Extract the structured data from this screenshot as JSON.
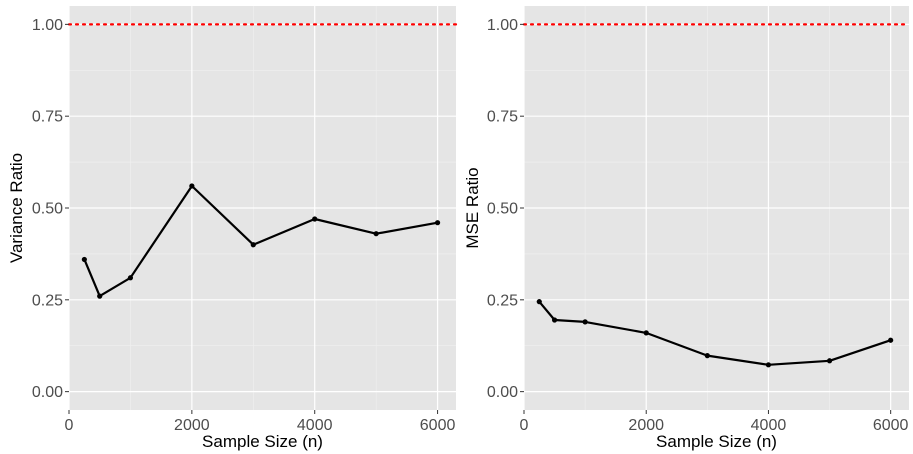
{
  "colors": {
    "panel_background": "#e5e5e5",
    "grid_major": "#ffffff",
    "grid_minor": "#f0f0f0",
    "line": "#000000",
    "reference_line": "#ff0000",
    "tick_label": "#4d4d4d"
  },
  "chart_data": [
    {
      "type": "line",
      "xlabel": "Sample Size (n)",
      "ylabel": "Variance Ratio",
      "xlim": [
        0,
        6300
      ],
      "ylim": [
        -0.05,
        1.05
      ],
      "x_ticks": [
        0,
        2000,
        4000,
        6000
      ],
      "x_tick_labels": [
        "0",
        "2000",
        "4000",
        "6000"
      ],
      "y_ticks": [
        0,
        0.25,
        0.5,
        0.75,
        1.0
      ],
      "y_tick_labels": [
        "0.00",
        "0.25",
        "0.50",
        "0.75",
        "1.00"
      ],
      "grid": true,
      "reference_line": {
        "y": 1.0,
        "style": "dotted",
        "color": "#ff0000"
      },
      "series": [
        {
          "x": [
            250,
            500,
            1000,
            2000,
            3000,
            4000,
            5000,
            6000
          ],
          "y": [
            0.36,
            0.26,
            0.31,
            0.56,
            0.4,
            0.47,
            0.43,
            0.46
          ],
          "markers": true
        }
      ]
    },
    {
      "type": "line",
      "xlabel": "Sample Size (n)",
      "ylabel": "MSE Ratio",
      "xlim": [
        0,
        6300
      ],
      "ylim": [
        -0.05,
        1.05
      ],
      "x_ticks": [
        0,
        2000,
        4000,
        6000
      ],
      "x_tick_labels": [
        "0",
        "2000",
        "4000",
        "6000"
      ],
      "y_ticks": [
        0,
        0.25,
        0.5,
        0.75,
        1.0
      ],
      "y_tick_labels": [
        "0.00",
        "0.25",
        "0.50",
        "0.75",
        "1.00"
      ],
      "grid": true,
      "reference_line": {
        "y": 1.0,
        "style": "dotted",
        "color": "#ff0000"
      },
      "series": [
        {
          "x": [
            250,
            500,
            1000,
            2000,
            3000,
            4000,
            5000,
            6000
          ],
          "y": [
            0.245,
            0.195,
            0.19,
            0.16,
            0.098,
            0.073,
            0.084,
            0.14
          ],
          "markers": true
        }
      ]
    }
  ]
}
